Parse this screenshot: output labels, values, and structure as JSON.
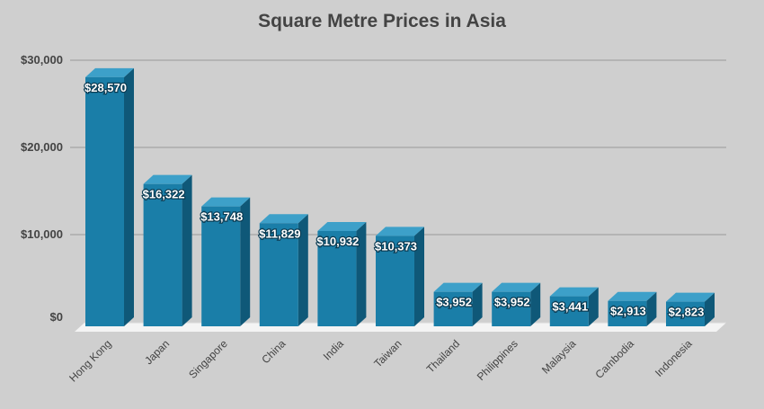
{
  "chart_data": {
    "type": "bar",
    "title": "Square Metre Prices in Asia",
    "xlabel": "",
    "ylabel": "",
    "ylim": [
      0,
      30000
    ],
    "yticks": [
      0,
      10000,
      20000,
      30000
    ],
    "ytick_labels": [
      "$0",
      "$10,000",
      "$20,000",
      "$30,000"
    ],
    "grid": true,
    "legend": "none",
    "bar_style": "3d",
    "categories": [
      "Hong Kong",
      "Japan",
      "Singapore",
      "China",
      "India",
      "Taiwan",
      "Thailand",
      "Philippines",
      "Malaysia",
      "Cambodia",
      "Indonesia"
    ],
    "values": [
      28570,
      16322,
      13748,
      11829,
      10932,
      10373,
      3952,
      3952,
      3441,
      2913,
      2823
    ],
    "data_labels": [
      "$28,570",
      "$16,322",
      "$13,748",
      "$11,829",
      "$10,932",
      "$10,373",
      "$3,952",
      "$3,952",
      "$3,441",
      "$2,913",
      "$2,823"
    ]
  },
  "colors": {
    "background": "#cfcfcf",
    "bar_front": "#1a7ea8",
    "bar_top": "#3da0c9",
    "bar_side": "#0f5878",
    "gridline": "#9a9a9a",
    "floor": "#f4f4f4",
    "axis_text": "#444444",
    "title_text": "#444444"
  }
}
